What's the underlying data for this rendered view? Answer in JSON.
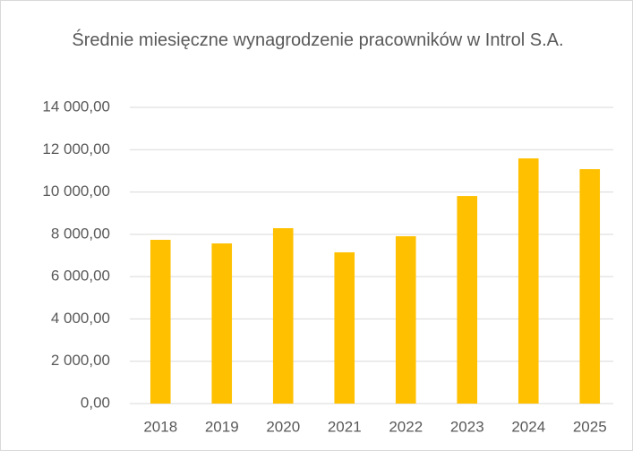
{
  "chart_data": {
    "type": "bar",
    "title": "Średnie miesięczne wynagrodzenie pracowników w Introl S.A.",
    "categories": [
      "2018",
      "2019",
      "2020",
      "2021",
      "2022",
      "2023",
      "2024",
      "2025"
    ],
    "values": [
      7740,
      7570,
      8290,
      7150,
      7910,
      9810,
      11590,
      11080
    ],
    "color": "#ffc000",
    "ylim": [
      0,
      14000
    ],
    "yticks": [
      {
        "value": 0,
        "label": "0,00"
      },
      {
        "value": 2000,
        "label": "2 000,00"
      },
      {
        "value": 4000,
        "label": "4 000,00"
      },
      {
        "value": 6000,
        "label": "6 000,00"
      },
      {
        "value": 8000,
        "label": "8 000,00"
      },
      {
        "value": 10000,
        "label": "10 000,00"
      },
      {
        "value": 12000,
        "label": "12 000,00"
      },
      {
        "value": 14000,
        "label": "14 000,00"
      }
    ],
    "grid": true
  }
}
